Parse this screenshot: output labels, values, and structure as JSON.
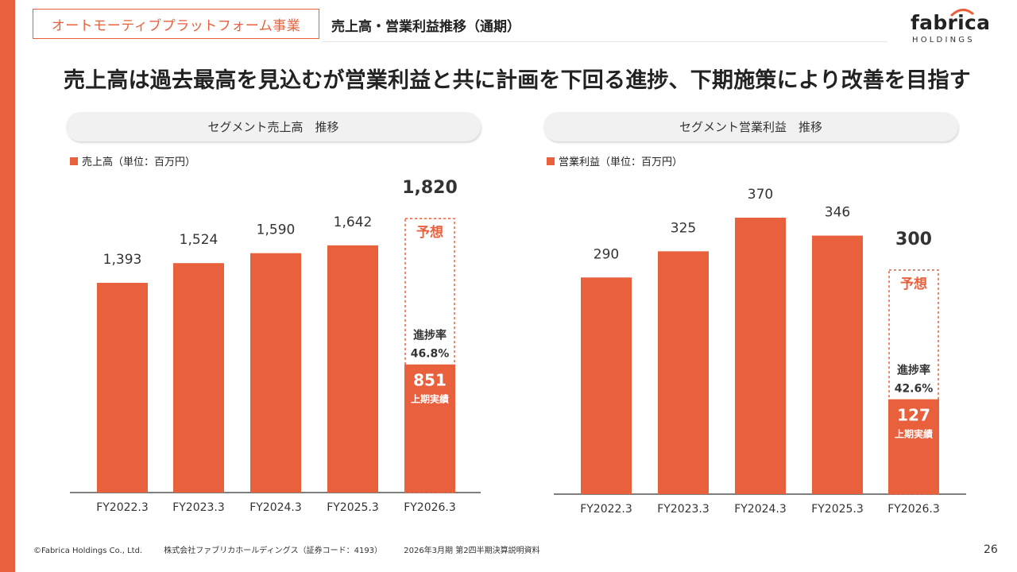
{
  "header": {
    "segment_tag": "オートモーティブプラットフォーム事業",
    "title": "売上高・営業利益推移（通期）",
    "logo_text": "fabrica",
    "logo_sub": "HOLDINGS"
  },
  "headline": "売上高は過去最高を見込むが営業利益と共に計画を下回る進捗、下期施策により改善を目指す",
  "colors": {
    "accent": "#e8603c",
    "bar": "#e8603c"
  },
  "footer": {
    "copyright": "©Fabrica Holdings Co., Ltd.",
    "company": "株式会社ファブリカホールディングス（証券コード：4193）",
    "doc": "2026年3月期 第2四半期決算説明資料",
    "page": "26"
  },
  "chart_data": [
    {
      "type": "bar",
      "title": "セグメント売上高　推移",
      "legend": "売上高（単位：百万円）",
      "categories": [
        "FY2022.3",
        "FY2023.3",
        "FY2024.3",
        "FY2025.3",
        "FY2026.3"
      ],
      "values": [
        1393,
        1524,
        1590,
        1642,
        1820
      ],
      "value_labels": [
        "1,393",
        "1,524",
        "1,590",
        "1,642",
        "1,820"
      ],
      "forecast": {
        "label": "予想",
        "total": 1820,
        "actual_h1": 851,
        "actual_label": "851",
        "actual_caption": "上期実績",
        "progress_label": "進捗率",
        "progress": "46.8%"
      }
    },
    {
      "type": "bar",
      "title": "セグメント営業利益　推移",
      "legend": "営業利益（単位：百万円）",
      "categories": [
        "FY2022.3",
        "FY2023.3",
        "FY2024.3",
        "FY2025.3",
        "FY2026.3"
      ],
      "values": [
        290,
        325,
        370,
        346,
        300
      ],
      "value_labels": [
        "290",
        "325",
        "370",
        "346",
        "300"
      ],
      "forecast": {
        "label": "予想",
        "total": 300,
        "actual_h1": 127,
        "actual_label": "127",
        "actual_caption": "上期実績",
        "progress_label": "進捗率",
        "progress": "42.6%"
      }
    }
  ]
}
